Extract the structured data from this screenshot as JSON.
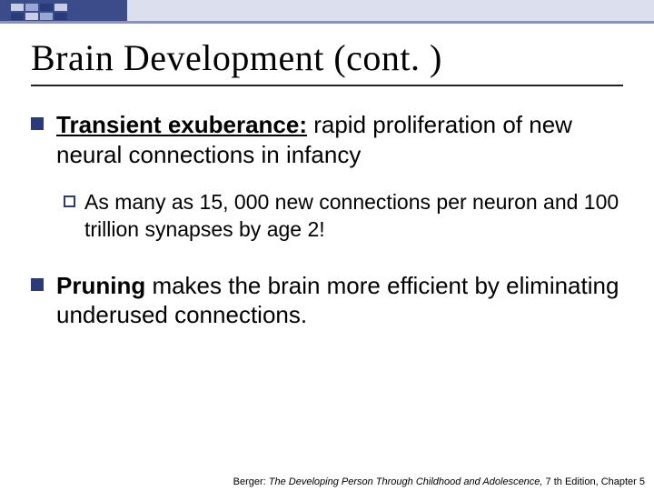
{
  "accent": {
    "primary_color": "#3b4c8a",
    "light_color": "#dce0ee",
    "border_color": "#8a93b8"
  },
  "title": "Brain Development (cont. )",
  "bullets": [
    {
      "term": "Transient exuberance:",
      "rest": " rapid proliferation of new neural connections in infancy"
    },
    {
      "prefix": "As",
      "rest": " many as 15, 000 new connections per neuron and 100 trillion synapses by age 2!"
    },
    {
      "term": "Pruning",
      "rest": " makes the brain more efficient by eliminating underused connections."
    }
  ],
  "footer": {
    "author": "Berger: ",
    "title_italic": "The Developing Person Through Childhood and Adolescence,",
    "edition": " 7 th Edition, Chapter 5"
  }
}
